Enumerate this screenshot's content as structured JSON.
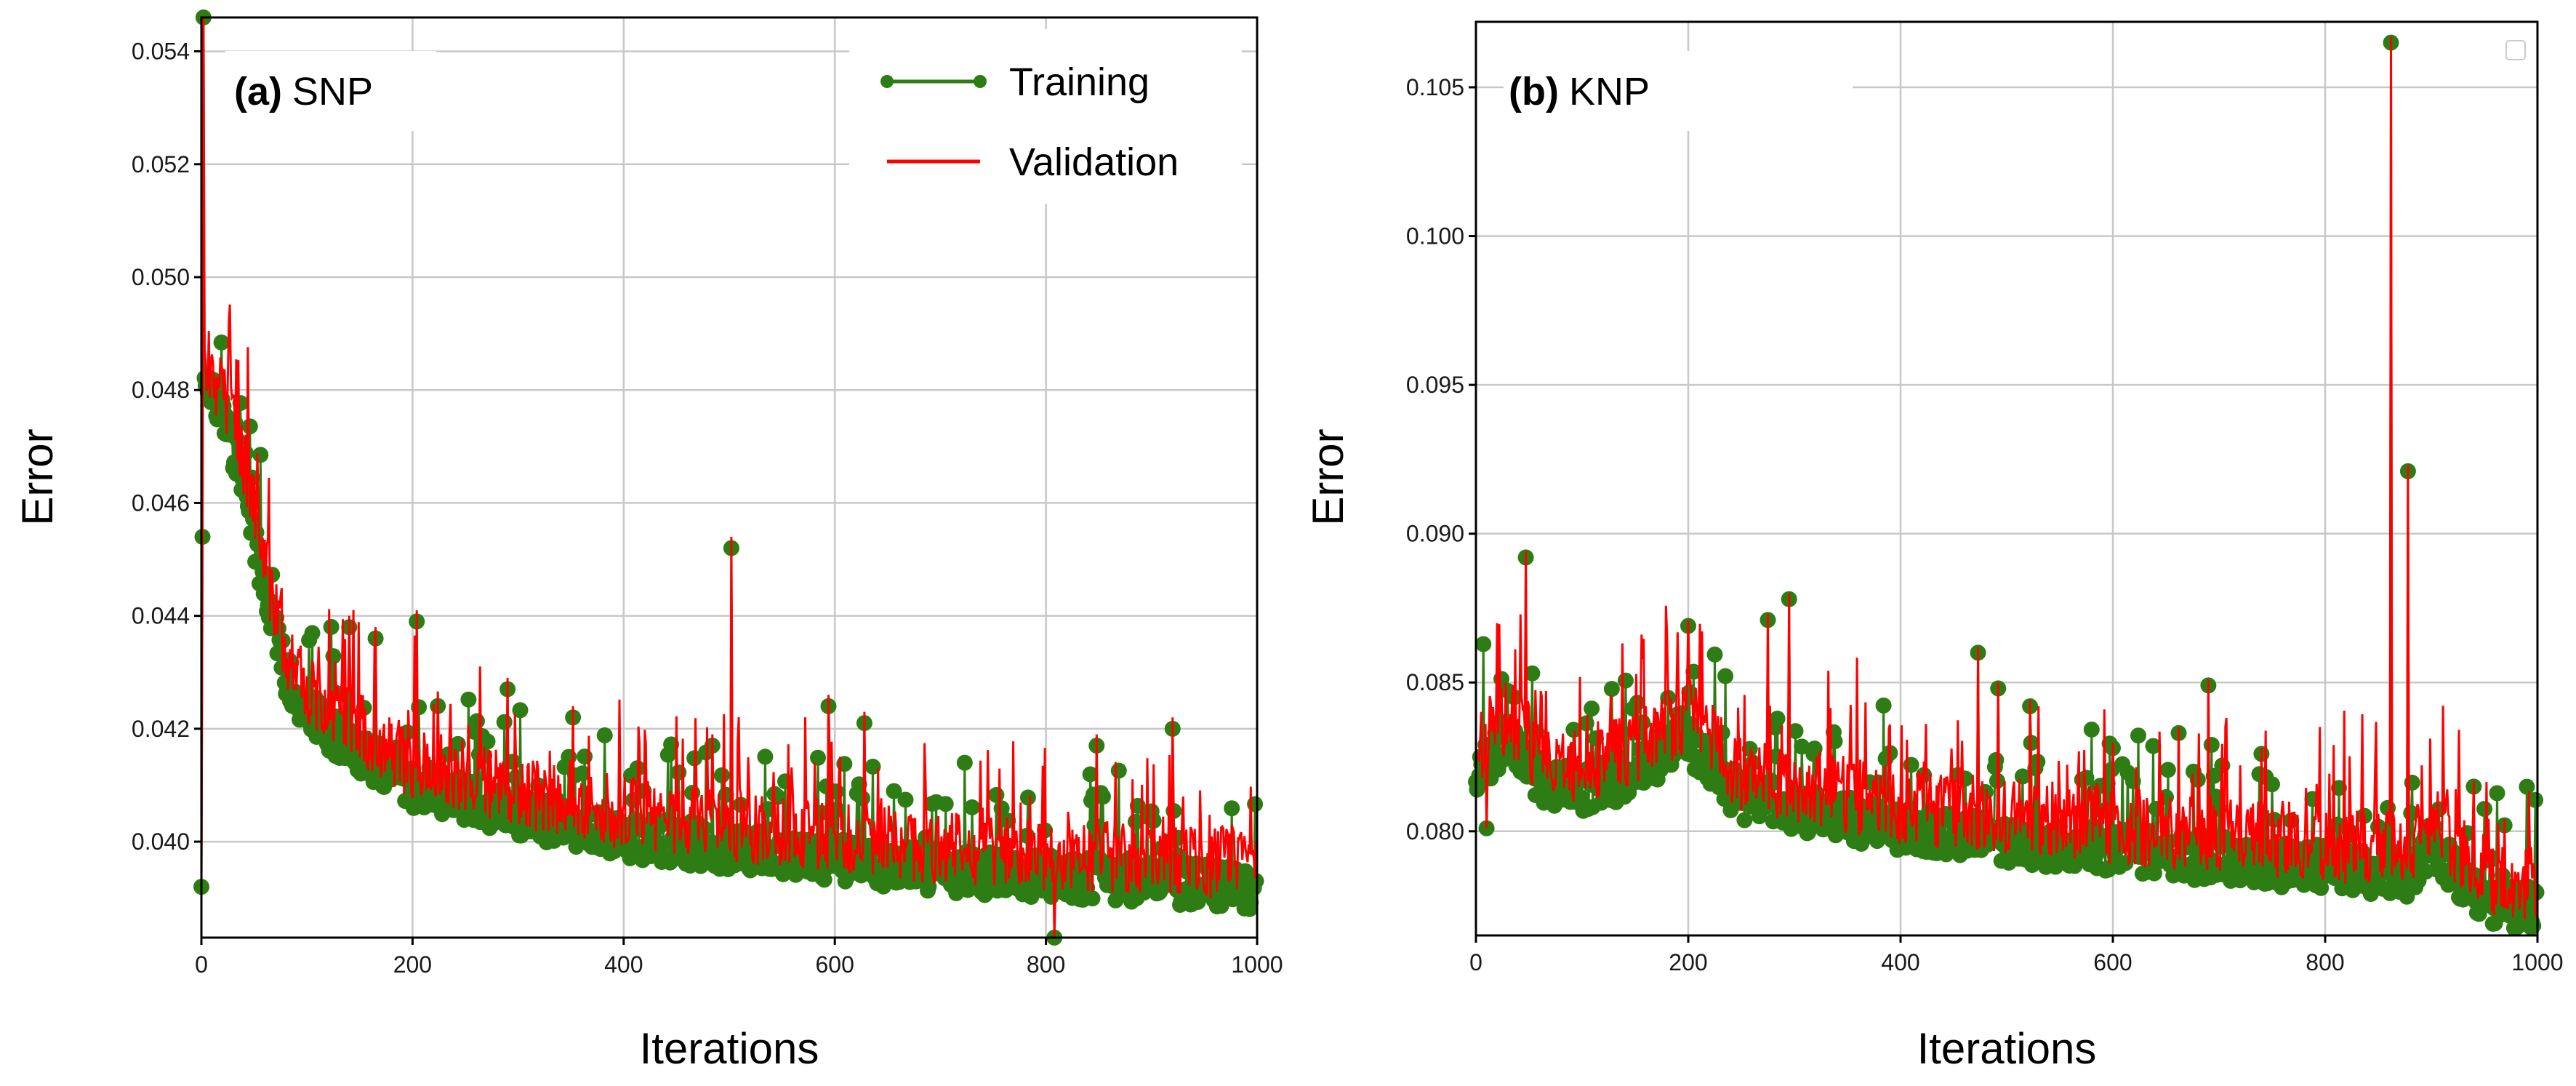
{
  "colors": {
    "training": "#2e7d14",
    "validation": "#ff0000",
    "grid": "#c8c8c8"
  },
  "chart_data": [
    {
      "type": "line",
      "panel_id": "(a)",
      "panel_name": "SNP",
      "xlabel": "Iterations",
      "ylabel": "Error",
      "xlim": [
        0,
        1000
      ],
      "ylim": [
        0.0383,
        0.0546
      ],
      "xticks": [
        0,
        200,
        400,
        600,
        800,
        1000
      ],
      "xtick_labels": [
        "0",
        "200",
        "400",
        "600",
        "800",
        "1000"
      ],
      "yticks": [
        0.04,
        0.042,
        0.044,
        0.046,
        0.048,
        0.05,
        0.052,
        0.054
      ],
      "ytick_labels": [
        "0.040",
        "0.042",
        "0.044",
        "0.046",
        "0.048",
        "0.050",
        "0.052",
        "0.054"
      ],
      "grid": true,
      "legend": {
        "position": "top-right",
        "entries": [
          "Training",
          "Validation"
        ]
      },
      "trend": [
        [
          0,
          0.0485
        ],
        [
          20,
          0.0478
        ],
        [
          40,
          0.0466
        ],
        [
          60,
          0.0447
        ],
        [
          80,
          0.0432
        ],
        [
          100,
          0.0425
        ],
        [
          150,
          0.0418
        ],
        [
          200,
          0.0412
        ],
        [
          300,
          0.0407
        ],
        [
          400,
          0.0403
        ],
        [
          500,
          0.0401
        ],
        [
          600,
          0.0399
        ],
        [
          700,
          0.0397
        ],
        [
          800,
          0.0396
        ],
        [
          900,
          0.0395
        ],
        [
          1000,
          0.0394
        ]
      ],
      "noise": 0.00055,
      "spike_prob": 0.12,
      "spike_range": [
        0.0005,
        0.0018
      ],
      "seed": 7,
      "spikes": [
        [
          2,
          0.0546
        ],
        [
          0,
          0.0392
        ],
        [
          1,
          0.0415
        ],
        [
          1,
          0.0435
        ],
        [
          1,
          0.0454
        ],
        [
          204,
          0.0439
        ],
        [
          502,
          0.0452
        ],
        [
          594,
          0.0424
        ],
        [
          628,
          0.0421
        ],
        [
          920,
          0.042
        ],
        [
          140,
          0.0438
        ],
        [
          165,
          0.0436
        ],
        [
          290,
          0.0427
        ],
        [
          352,
          0.0422
        ],
        [
          484,
          0.0417
        ],
        [
          848,
          0.0417
        ],
        [
          808,
          0.0383
        ]
      ],
      "series": [
        {
          "name": "Training",
          "values": "generated from trend + noise (1000 iterations)"
        },
        {
          "name": "Validation",
          "values": "generated from trend + noise (1000 iterations)"
        }
      ]
    },
    {
      "type": "line",
      "panel_id": "(b)",
      "panel_name": "KNP",
      "xlabel": "Iterations",
      "ylabel": "Error",
      "xlim": [
        0,
        1000
      ],
      "ylim": [
        0.0765,
        0.1072
      ],
      "xticks": [
        0,
        200,
        400,
        600,
        800,
        1000
      ],
      "xtick_labels": [
        "0",
        "200",
        "400",
        "600",
        "800",
        "1000"
      ],
      "yticks": [
        0.08,
        0.085,
        0.09,
        0.095,
        0.1,
        0.105
      ],
      "ytick_labels": [
        "0.080",
        "0.085",
        "0.090",
        "0.095",
        "0.100",
        "0.105"
      ],
      "grid": true,
      "legend": {
        "position": "top-right",
        "entries": []
      },
      "trend": [
        [
          0,
          0.0825
        ],
        [
          30,
          0.0835
        ],
        [
          60,
          0.0822
        ],
        [
          100,
          0.0818
        ],
        [
          150,
          0.0824
        ],
        [
          200,
          0.0835
        ],
        [
          250,
          0.0815
        ],
        [
          300,
          0.0812
        ],
        [
          400,
          0.0805
        ],
        [
          500,
          0.0801
        ],
        [
          600,
          0.0798
        ],
        [
          700,
          0.0795
        ],
        [
          800,
          0.0792
        ],
        [
          880,
          0.079
        ],
        [
          900,
          0.08
        ],
        [
          950,
          0.078
        ],
        [
          1000,
          0.0778
        ]
      ],
      "noise": 0.0011,
      "spike_prob": 0.1,
      "spike_range": [
        0.0012,
        0.0035
      ],
      "seed": 13,
      "spikes": [
        [
          862,
          0.1065
        ],
        [
          878,
          0.0921
        ],
        [
          47,
          0.0892
        ],
        [
          295,
          0.0878
        ],
        [
          275,
          0.0871
        ],
        [
          200,
          0.0869
        ],
        [
          473,
          0.086
        ],
        [
          492,
          0.0848
        ],
        [
          522,
          0.0842
        ],
        [
          690,
          0.0849
        ],
        [
          662,
          0.0833
        ],
        [
          940,
          0.0815
        ],
        [
          969,
          0.0802
        ],
        [
          10,
          0.0801
        ],
        [
          600,
          0.0828
        ],
        [
          740,
          0.0826
        ]
      ],
      "series": [
        {
          "name": "Training",
          "values": "generated from trend + noise (1000 iterations)"
        },
        {
          "name": "Validation",
          "values": "generated from trend + noise (1000 iterations)"
        }
      ]
    }
  ]
}
